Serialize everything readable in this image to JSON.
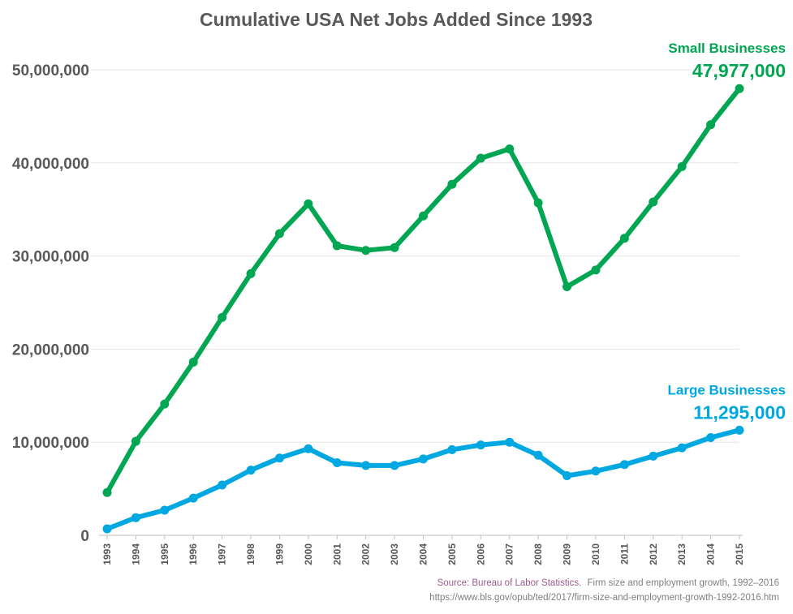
{
  "chart_data": {
    "type": "line",
    "title": "Cumulative USA Net Jobs Added Since 1993",
    "xlabel": "",
    "ylabel": "",
    "x": [
      1993,
      1994,
      1995,
      1996,
      1997,
      1998,
      1999,
      2000,
      2001,
      2002,
      2003,
      2004,
      2005,
      2006,
      2007,
      2008,
      2009,
      2010,
      2011,
      2012,
      2013,
      2014,
      2015
    ],
    "ylim": [
      0,
      50000000
    ],
    "yticks": [
      "0",
      "10,000,000",
      "20,000,000",
      "30,000,000",
      "40,000,000",
      "50,000,000"
    ],
    "grid": true,
    "series": [
      {
        "name": "Small Businesses",
        "end_label": "47,977,000",
        "color": "#00a651",
        "values": [
          4600000,
          10100000,
          14100000,
          18600000,
          23400000,
          28100000,
          32400000,
          35600000,
          31100000,
          30600000,
          30900000,
          34300000,
          37700000,
          40500000,
          41500000,
          35700000,
          26700000,
          28500000,
          31900000,
          35800000,
          39600000,
          44100000,
          47977000
        ]
      },
      {
        "name": "Large Businesses",
        "end_label": "11,295,000",
        "color": "#00a8e1",
        "values": [
          700000,
          1900000,
          2700000,
          4000000,
          5400000,
          7000000,
          8300000,
          9300000,
          7800000,
          7500000,
          7500000,
          8200000,
          9200000,
          9700000,
          10000000,
          8600000,
          6400000,
          6900000,
          7600000,
          8500000,
          9400000,
          10500000,
          11295000
        ]
      }
    ],
    "source": {
      "label": "Source: Bureau of Labor Statistics.",
      "citation": "Firm size and employment growth, 1992–2016",
      "url": "https://www.bls.gov/opub/ted/2017/firm-size-and-employment-growth-1992-2016.htm"
    }
  }
}
